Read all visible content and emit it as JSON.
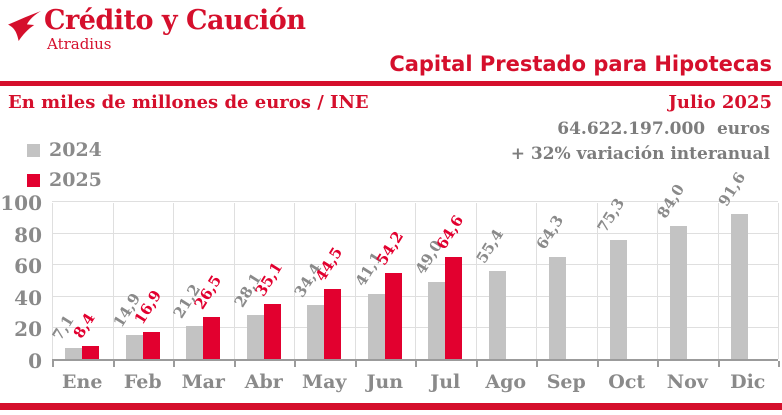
{
  "brand": {
    "name": "Crédito y Caución",
    "subname": "Atradius"
  },
  "header": {
    "title": "Capital Prestado para Hipotecas"
  },
  "subheader": {
    "units": "En miles de millones de euros / INE",
    "period": "Julio 2025"
  },
  "stats": {
    "amount": "64.622.197.000  euros",
    "variation": "+ 32% variación interanual"
  },
  "legend": [
    {
      "label": "2024",
      "color": "#c3c3c3"
    },
    {
      "label": "2025",
      "color": "#e2002f"
    }
  ],
  "colors": {
    "brand_red": "#d50f2c",
    "bar_red": "#e2002f",
    "bar_gray": "#c3c3c3",
    "label_gray": "#8a8a8a",
    "stats_gray": "#7d7d7d",
    "grid": "#dfdfdf",
    "axis": "#9b9b9b"
  },
  "chart_data": {
    "type": "bar",
    "title": "Capital Prestado para Hipotecas",
    "xlabel": "",
    "ylabel": "En miles de millones de euros / INE",
    "categories": [
      "Ene",
      "Feb",
      "Mar",
      "Abr",
      "May",
      "Jun",
      "Jul",
      "Ago",
      "Sep",
      "Oct",
      "Nov",
      "Dic"
    ],
    "series": [
      {
        "name": "2024",
        "color": "#c3c3c3",
        "label_color": "#8a8a8a",
        "values": [
          7.1,
          14.9,
          21.2,
          28.1,
          34.4,
          41.1,
          49.0,
          55.4,
          64.3,
          75.3,
          84.0,
          91.6
        ]
      },
      {
        "name": "2025",
        "color": "#e2002f",
        "label_color": "#e2002f",
        "values": [
          8.4,
          16.9,
          26.5,
          35.1,
          44.5,
          54.2,
          64.6,
          null,
          null,
          null,
          null,
          null
        ]
      }
    ],
    "ylim": [
      0,
      100
    ],
    "yticks": [
      0,
      20,
      40,
      60,
      80,
      100
    ],
    "grid": true,
    "legend_position": "top-left",
    "decimal_separator": ","
  }
}
